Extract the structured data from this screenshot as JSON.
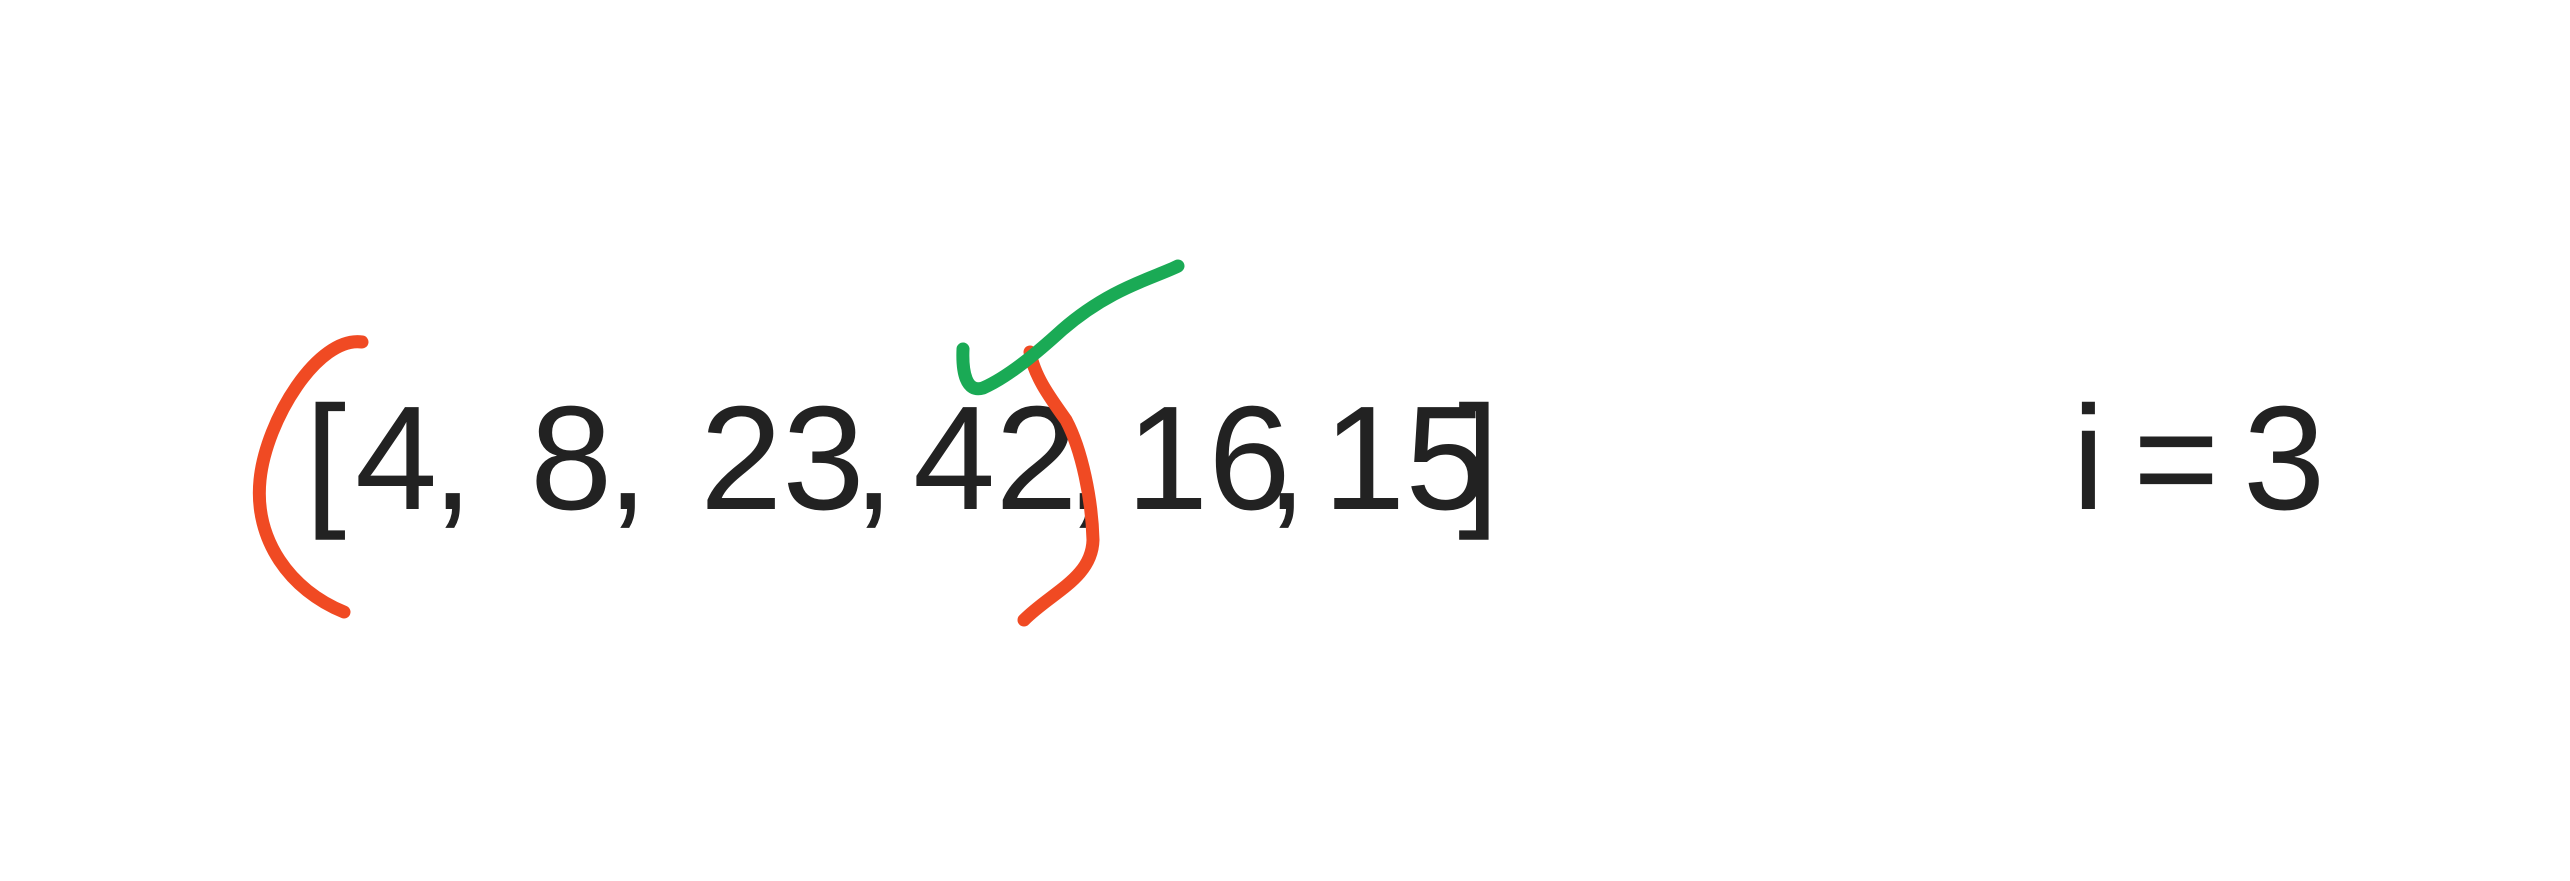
{
  "array": {
    "open_bracket": "[",
    "close_bracket": "]",
    "items": [
      {
        "value": "4",
        "separator": ","
      },
      {
        "value": "8",
        "separator": ","
      },
      {
        "value": "23",
        "separator": ","
      },
      {
        "value": "42",
        "separator": ","
      },
      {
        "value": "16",
        "separator": ","
      },
      {
        "value": "15",
        "separator": ""
      }
    ]
  },
  "index_label": {
    "variable": "i",
    "operator": "=",
    "value": "3"
  },
  "colors": {
    "text": "#222222",
    "bracket_annotation": "#f04a23",
    "check_annotation": "#1aaa55"
  },
  "annotations": [
    {
      "type": "bracket",
      "icon": "open-paren-annotation-icon"
    },
    {
      "type": "bracket",
      "icon": "close-paren-annotation-icon"
    },
    {
      "type": "check",
      "icon": "checkmark-icon"
    }
  ]
}
